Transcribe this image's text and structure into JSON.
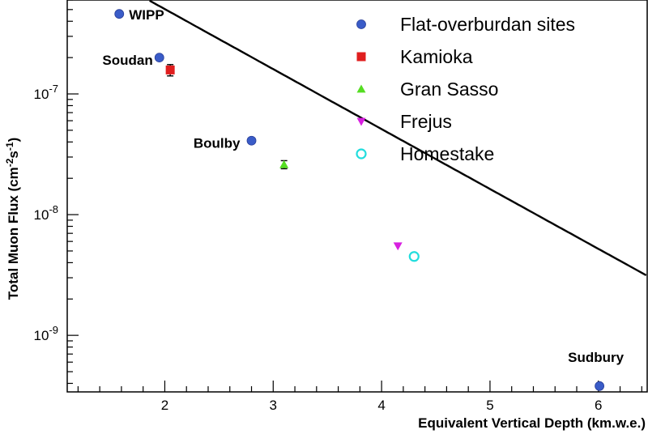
{
  "chart_data": {
    "type": "scatter",
    "xlabel": "Equivalent Vertical Depth (km.w.e.)",
    "ylabel_parts": {
      "a": "Total Muon Flux (cm",
      "b": "-2",
      "c": "s",
      "d": "-1",
      "e": ")"
    },
    "xlim": [
      1.1,
      6.45
    ],
    "ylim": [
      3.4e-10,
      6e-07
    ],
    "y_scale": "log",
    "x_ticks": [
      "2",
      "3",
      "4",
      "5",
      "6"
    ],
    "y_ticks": [
      {
        "value": 1e-07,
        "base": "10",
        "exp": "-7"
      },
      {
        "value": 1e-08,
        "base": "10",
        "exp": "-8"
      },
      {
        "value": 1e-09,
        "base": "10",
        "exp": "-9"
      }
    ],
    "fit_curve": {
      "a": 4e-06,
      "b": 0.86,
      "c": 1e-06,
      "d": 0.92
    },
    "series": [
      {
        "name": "Flat-overburdan sites",
        "marker": "circle-filled",
        "color": "#3a5cc8",
        "points": [
          {
            "x": 1.58,
            "y": 4.6e-07,
            "label": "WIPP"
          },
          {
            "x": 1.95,
            "y": 2e-07,
            "label": "Soudan"
          },
          {
            "x": 2.8,
            "y": 4.1e-08,
            "label": "Boulby"
          },
          {
            "x": 6.01,
            "y": 3.8e-10,
            "label": "Sudbury"
          }
        ]
      },
      {
        "name": "Kamioka",
        "marker": "square",
        "color": "#e01e1e",
        "points": [
          {
            "x": 2.05,
            "y": 1.58e-07,
            "yerr": 1.7e-08
          }
        ]
      },
      {
        "name": "Gran Sasso",
        "marker": "triangle-up",
        "color": "#55dd22",
        "points": [
          {
            "x": 3.1,
            "y": 2.6e-08,
            "yerr": 2e-09
          }
        ]
      },
      {
        "name": "Frejus",
        "marker": "triangle-down",
        "color": "#d820e0",
        "points": [
          {
            "x": 4.15,
            "y": 5.5e-09
          }
        ]
      },
      {
        "name": "Homestake",
        "marker": "circle-open",
        "color": "#22dddd",
        "points": [
          {
            "x": 4.3,
            "y": 4.5e-09
          }
        ]
      }
    ],
    "legend_position": "top-right",
    "grid": false
  }
}
